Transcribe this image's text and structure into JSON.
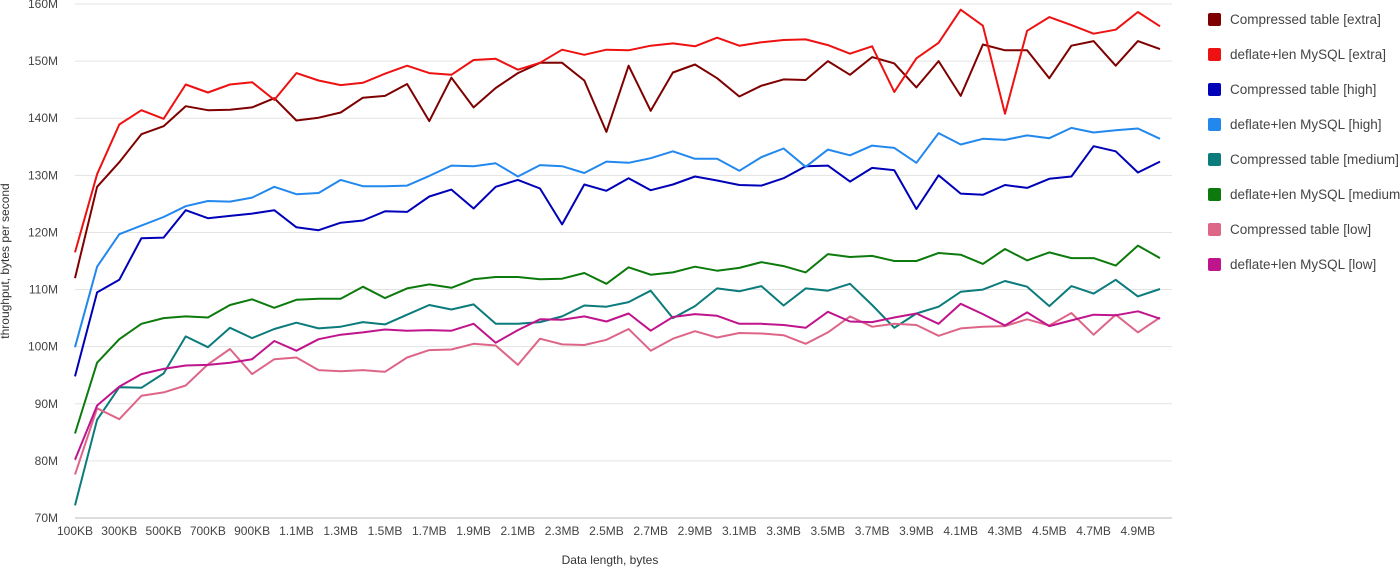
{
  "chart_data": {
    "type": "line",
    "title": "",
    "xlabel": "Data length, bytes",
    "ylabel": "throughput, bytes per second",
    "ylim": [
      70,
      160
    ],
    "y_unit_suffix": "M",
    "y_ticks": [
      "70M",
      "80M",
      "90M",
      "100M",
      "110M",
      "120M",
      "130M",
      "140M",
      "150M",
      "160M"
    ],
    "x_tick_labels": [
      "100KB",
      "300KB",
      "500KB",
      "700KB",
      "900KB",
      "1.1MB",
      "1.3MB",
      "1.5MB",
      "1.7MB",
      "1.9MB",
      "2.1MB",
      "2.3MB",
      "2.5MB",
      "2.7MB",
      "2.9MB",
      "3.1MB",
      "3.3MB",
      "3.5MB",
      "3.7MB",
      "3.9MB",
      "4.1MB",
      "4.3MB",
      "4.5MB",
      "4.7MB",
      "4.9MB"
    ],
    "x_kb": [
      100,
      200,
      300,
      400,
      500,
      600,
      700,
      800,
      900,
      1000,
      1100,
      1200,
      1300,
      1400,
      1500,
      1600,
      1700,
      1800,
      1900,
      2000,
      2100,
      2200,
      2300,
      2400,
      2500,
      2600,
      2700,
      2800,
      2900,
      3000,
      3100,
      3200,
      3300,
      3400,
      3500,
      3600,
      3700,
      3800,
      3900,
      4000,
      4100,
      4200,
      4300,
      4400,
      4500,
      4600,
      4700,
      4800,
      4900,
      5000
    ],
    "grid": true,
    "legend_position": "right",
    "series": [
      {
        "name": "Compressed table [extra]",
        "color": "#7f0000",
        "values": [
          112,
          128,
          132.3,
          137.2,
          138.6,
          142.1,
          141.4,
          141.5,
          141.9,
          143.5,
          139.6,
          140.1,
          141,
          143.6,
          143.9,
          146,
          139.5,
          147.1,
          141.9,
          145.3,
          147.9,
          149.7,
          149.7,
          146.6,
          137.6,
          149.2,
          141.3,
          148,
          149.4,
          147,
          143.8,
          145.7,
          146.8,
          146.7,
          150,
          147.6,
          150.7,
          149.6,
          145.4,
          150,
          143.9,
          152.9,
          151.9,
          151.9,
          147,
          152.7,
          153.5,
          149.2,
          153.5,
          152.1
        ]
      },
      {
        "name": "deflate+len MySQL [extra]",
        "color": "#ee1111",
        "values": [
          116.5,
          130.2,
          138.9,
          141.4,
          139.9,
          145.9,
          144.5,
          145.9,
          146.3,
          143.2,
          147.9,
          146.6,
          145.8,
          146.2,
          147.8,
          149.2,
          147.9,
          147.6,
          150.2,
          150.4,
          148.5,
          149.7,
          152,
          151.1,
          152,
          151.9,
          152.7,
          153.1,
          152.6,
          154.1,
          152.7,
          153.3,
          153.7,
          153.8,
          152.8,
          151.3,
          152.6,
          144.6,
          150.5,
          153.2,
          159,
          156.2,
          140.8,
          155.3,
          157.7,
          156.3,
          154.8,
          155.5,
          158.6,
          156.1
        ]
      },
      {
        "name": "Compressed table [high]",
        "color": "#0000b8",
        "values": [
          94.8,
          109.5,
          111.7,
          119,
          119.1,
          123.9,
          122.5,
          122.9,
          123.3,
          123.9,
          120.9,
          120.4,
          121.7,
          122.1,
          123.7,
          123.6,
          126.3,
          127.5,
          124.2,
          128,
          129.2,
          127.7,
          121.4,
          128.4,
          127.3,
          129.5,
          127.4,
          128.4,
          129.8,
          129.1,
          128.3,
          128.2,
          129.5,
          131.6,
          131.7,
          128.9,
          131.3,
          130.9,
          124.1,
          130,
          126.8,
          126.6,
          128.3,
          127.8,
          129.4,
          129.8,
          135.1,
          134.2,
          130.5,
          132.4
        ]
      },
      {
        "name": "deflate+len MySQL [high]",
        "color": "#2288ee",
        "values": [
          99.9,
          114,
          119.7,
          121.2,
          122.7,
          124.6,
          125.5,
          125.4,
          126.1,
          128,
          126.7,
          126.9,
          129.2,
          128.1,
          128.1,
          128.2,
          129.9,
          131.7,
          131.6,
          132.1,
          129.8,
          131.8,
          131.6,
          130.4,
          132.4,
          132.2,
          133,
          134.2,
          132.9,
          132.9,
          130.8,
          133.2,
          134.7,
          131.5,
          134.5,
          133.5,
          135.2,
          134.8,
          132.2,
          137.4,
          135.4,
          136.4,
          136.2,
          137,
          136.5,
          138.3,
          137.5,
          137.9,
          138.2,
          136.4
        ]
      },
      {
        "name": "Compressed table [medium]",
        "color": "#0b7b7b",
        "values": [
          72.2,
          87.2,
          92.9,
          92.8,
          95.3,
          101.8,
          99.9,
          103.3,
          101.5,
          103.1,
          104.2,
          103.2,
          103.5,
          104.3,
          103.9,
          105.6,
          107.3,
          106.5,
          107.4,
          104,
          104,
          104.3,
          105.3,
          107.2,
          107,
          107.8,
          109.8,
          105,
          107.1,
          110.2,
          109.7,
          110.6,
          107.2,
          110.2,
          109.8,
          111,
          107.3,
          103.3,
          105.8,
          107,
          109.6,
          110,
          111.5,
          110.5,
          107.1,
          110.6,
          109.3,
          111.7,
          108.8,
          110.1
        ]
      },
      {
        "name": "deflate+len MySQL [medium]",
        "color": "#0c7a0c",
        "values": [
          84.8,
          97.2,
          101.3,
          104,
          105,
          105.3,
          105.1,
          107.3,
          108.3,
          106.8,
          108.2,
          108.4,
          108.4,
          110.5,
          108.5,
          110.2,
          110.9,
          110.3,
          111.8,
          112.2,
          112.2,
          111.8,
          111.9,
          112.9,
          111,
          113.9,
          112.6,
          113,
          114,
          113.3,
          113.8,
          114.8,
          114.1,
          113,
          116.2,
          115.7,
          115.9,
          115,
          115,
          116.4,
          116.1,
          114.5,
          117.1,
          115.1,
          116.5,
          115.5,
          115.5,
          114.2,
          117.7,
          115.5
        ]
      },
      {
        "name": "Compressed table [low]",
        "color": "#dd6688",
        "values": [
          77.6,
          89.2,
          87.3,
          91.4,
          92,
          93.2,
          96.9,
          99.6,
          95.2,
          97.8,
          98.1,
          95.9,
          95.7,
          95.9,
          95.6,
          98.1,
          99.4,
          99.5,
          100.5,
          100.2,
          96.8,
          101.4,
          100.4,
          100.3,
          101.2,
          103.1,
          99.3,
          101.4,
          102.7,
          101.6,
          102.4,
          102.3,
          102,
          100.5,
          102.5,
          105.3,
          103.5,
          104,
          103.8,
          101.9,
          103.2,
          103.5,
          103.6,
          104.8,
          103.7,
          105.9,
          102.1,
          105.6,
          102.5,
          105.1
        ]
      },
      {
        "name": "deflate+len MySQL [low]",
        "color": "#c0148c",
        "values": [
          80.2,
          89.7,
          93,
          95.2,
          96.1,
          96.7,
          96.8,
          97.2,
          97.8,
          101,
          99.3,
          101.3,
          102.1,
          102.5,
          103,
          102.8,
          102.9,
          102.8,
          104,
          100.7,
          102.9,
          104.8,
          104.7,
          105.3,
          104.4,
          105.8,
          102.8,
          105.2,
          105.7,
          105.4,
          104,
          104,
          103.8,
          103.3,
          106.1,
          104.4,
          104.3,
          105.1,
          105.8,
          104,
          107.5,
          105.7,
          103.7,
          106,
          103.6,
          104.6,
          105.6,
          105.5,
          106.2,
          104.9
        ]
      }
    ]
  }
}
